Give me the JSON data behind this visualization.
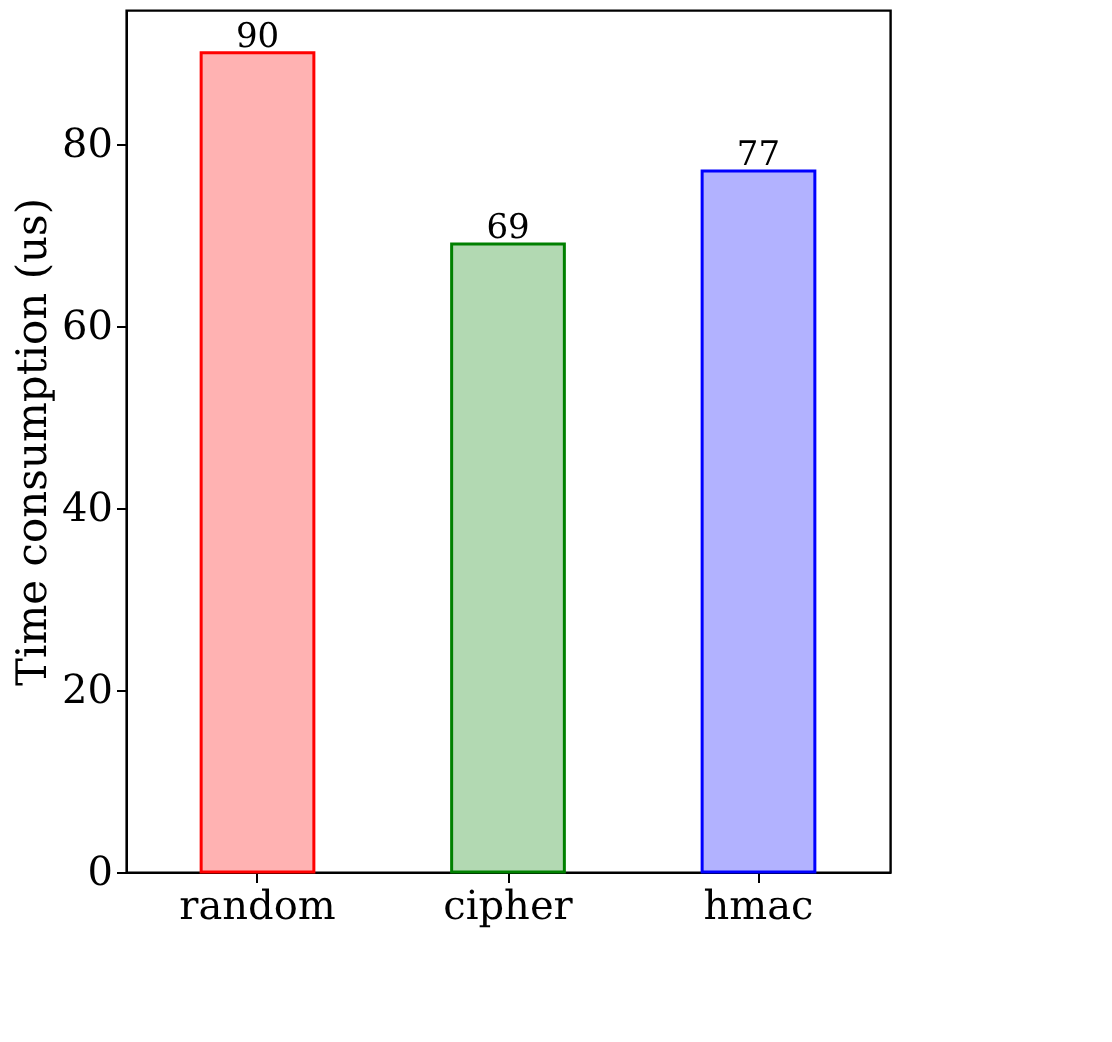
{
  "chart_data": {
    "type": "bar",
    "ylabel": "Time consumption (us)",
    "categories": [
      "random",
      "cipher",
      "hmac"
    ],
    "values": [
      90,
      69,
      77
    ],
    "colors": [
      "#ff0000",
      "#008000",
      "#0000ff"
    ],
    "ylim": [
      0,
      94.7
    ],
    "yticks": [
      0,
      20,
      40,
      60,
      80
    ],
    "data_labels": true,
    "grid": false
  }
}
